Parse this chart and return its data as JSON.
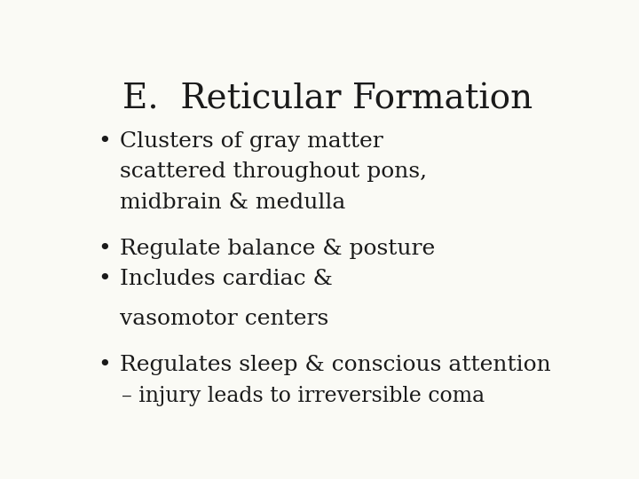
{
  "title": "E.  Reticular Formation",
  "background_color": "#fafaf5",
  "title_fontsize": 28,
  "title_color": "#1a1a1a",
  "bullet_color": "#1a1a1a",
  "bullet_fontsize": 18,
  "sub_fontsize": 17,
  "lines": [
    {
      "type": "bullet",
      "text": "Clusters of gray matter"
    },
    {
      "type": "cont",
      "text": "scattered throughout pons,"
    },
    {
      "type": "cont",
      "text": "midbrain & medulla"
    },
    {
      "type": "gap"
    },
    {
      "type": "bullet",
      "text": "Regulate balance & posture"
    },
    {
      "type": "bullet",
      "text": "Includes cardiac &"
    },
    {
      "type": "gap_small"
    },
    {
      "type": "cont",
      "text": "vasomotor centers"
    },
    {
      "type": "gap"
    },
    {
      "type": "bullet",
      "text": "Regulates sleep & conscious attention"
    },
    {
      "type": "sub",
      "text": "– injury leads to irreversible coma"
    }
  ]
}
